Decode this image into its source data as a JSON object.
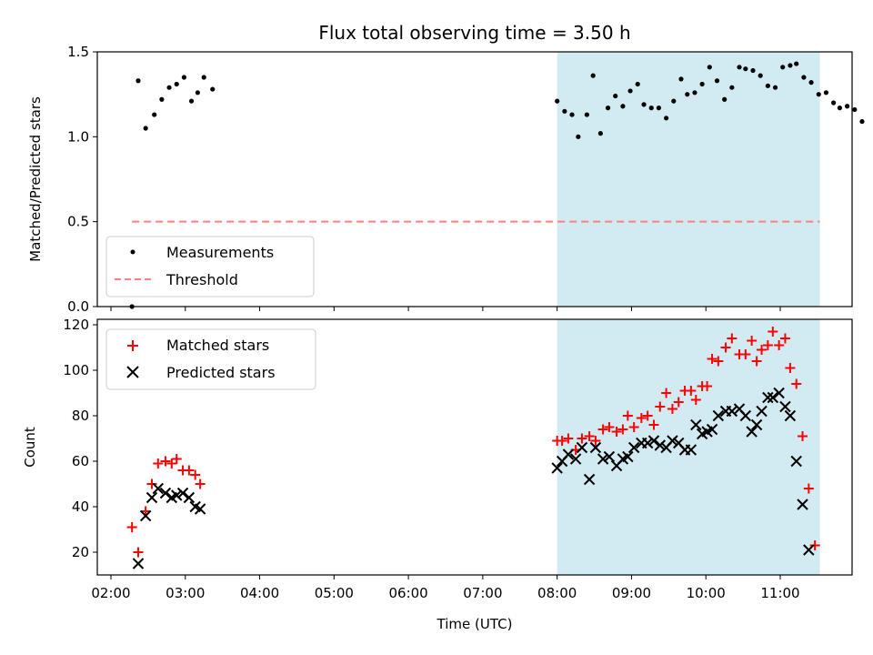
{
  "figure": {
    "title": "Flux total observing time = 3.50 h"
  },
  "colors": {
    "measurement": "#000000",
    "threshold": "#ff7f7f",
    "matched": "#ff0000",
    "predicted": "#000000",
    "shade": "#add8e6"
  },
  "chart_data": [
    {
      "type": "scatter",
      "ylabel": "Matched/Predicted stars",
      "xlabel": "",
      "ylim": [
        0,
        1.5
      ],
      "yticks": [
        "0.0",
        "0.5",
        "1.0",
        "1.5"
      ],
      "xlim_hours": [
        1.75,
        11.95
      ],
      "shaded_range": [
        "08:00",
        "11:32"
      ],
      "legend": {
        "placement": "lower-left",
        "items": [
          "Measurements",
          "Threshold"
        ]
      },
      "threshold": {
        "name": "Threshold",
        "y": 0.5,
        "x_range": [
          "02:17",
          "11:32"
        ]
      },
      "series": [
        {
          "name": "Measurements",
          "marker": "dot",
          "points": [
            [
              "02:17",
              0.0
            ],
            [
              "02:22",
              1.33
            ],
            [
              "02:28",
              1.05
            ],
            [
              "02:35",
              1.13
            ],
            [
              "02:41",
              1.22
            ],
            [
              "02:47",
              1.29
            ],
            [
              "02:53",
              1.31
            ],
            [
              "02:59",
              1.35
            ],
            [
              "03:05",
              1.21
            ],
            [
              "03:10",
              1.26
            ],
            [
              "03:15",
              1.35
            ],
            [
              "03:22",
              1.28
            ],
            [
              "08:00",
              1.21
            ],
            [
              "08:06",
              1.15
            ],
            [
              "08:12",
              1.13
            ],
            [
              "08:17",
              1.0
            ],
            [
              "08:24",
              1.13
            ],
            [
              "08:29",
              1.36
            ],
            [
              "08:35",
              1.02
            ],
            [
              "08:41",
              1.17
            ],
            [
              "08:47",
              1.24
            ],
            [
              "08:53",
              1.18
            ],
            [
              "08:59",
              1.27
            ],
            [
              "09:05",
              1.31
            ],
            [
              "09:10",
              1.19
            ],
            [
              "09:16",
              1.17
            ],
            [
              "09:22",
              1.17
            ],
            [
              "09:28",
              1.11
            ],
            [
              "09:34",
              1.21
            ],
            [
              "09:40",
              1.34
            ],
            [
              "09:45",
              1.25
            ],
            [
              "09:51",
              1.26
            ],
            [
              "09:57",
              1.31
            ],
            [
              "10:03",
              1.41
            ],
            [
              "10:09",
              1.33
            ],
            [
              "10:15",
              1.22
            ],
            [
              "10:21",
              1.29
            ],
            [
              "10:27",
              1.41
            ],
            [
              "10:32",
              1.4
            ],
            [
              "10:38",
              1.39
            ],
            [
              "10:44",
              1.36
            ],
            [
              "10:50",
              1.3
            ],
            [
              "10:56",
              1.29
            ],
            [
              "11:02",
              1.41
            ],
            [
              "11:08",
              1.42
            ],
            [
              "11:13",
              1.43
            ],
            [
              "11:19",
              1.35
            ],
            [
              "11:25",
              1.32
            ],
            [
              "11:31",
              1.25
            ],
            [
              "11:37",
              1.26
            ],
            [
              "11:43",
              1.2
            ],
            [
              "11:48",
              1.17
            ],
            [
              "11:54",
              1.18
            ],
            [
              "12:00",
              1.16
            ],
            [
              "12:06",
              1.09
            ]
          ]
        }
      ]
    },
    {
      "type": "scatter",
      "ylabel": "Count",
      "xlabel": "Time (UTC)",
      "ylim": [
        10,
        122
      ],
      "yticks": [
        "20",
        "40",
        "60",
        "80",
        "100",
        "120"
      ],
      "xticks": [
        "02:00",
        "03:00",
        "04:00",
        "05:00",
        "06:00",
        "07:00",
        "08:00",
        "09:00",
        "10:00",
        "11:00"
      ],
      "shaded_range": [
        "08:00",
        "11:32"
      ],
      "legend": {
        "placement": "top-left",
        "items": [
          "Matched stars",
          "Predicted stars"
        ]
      },
      "series": [
        {
          "name": "Matched stars",
          "marker": "plus",
          "points": [
            [
              "02:17",
              31
            ],
            [
              "02:22",
              20
            ],
            [
              "02:28",
              38
            ],
            [
              "02:33",
              50
            ],
            [
              "02:38",
              59
            ],
            [
              "02:44",
              60
            ],
            [
              "02:49",
              59
            ],
            [
              "02:53",
              61
            ],
            [
              "02:58",
              56
            ],
            [
              "03:03",
              56
            ],
            [
              "03:08",
              54
            ],
            [
              "03:12",
              50
            ],
            [
              "08:00",
              69
            ],
            [
              "08:04",
              69
            ],
            [
              "08:09",
              70
            ],
            [
              "08:15",
              65
            ],
            [
              "08:20",
              70
            ],
            [
              "08:26",
              71
            ],
            [
              "08:31",
              69
            ],
            [
              "08:37",
              74
            ],
            [
              "08:42",
              75
            ],
            [
              "08:48",
              73
            ],
            [
              "08:53",
              74
            ],
            [
              "08:57",
              80
            ],
            [
              "09:02",
              75
            ],
            [
              "09:08",
              79
            ],
            [
              "09:13",
              80
            ],
            [
              "09:18",
              76
            ],
            [
              "09:23",
              84
            ],
            [
              "09:28",
              90
            ],
            [
              "09:33",
              83
            ],
            [
              "09:38",
              86
            ],
            [
              "09:43",
              91
            ],
            [
              "09:48",
              91
            ],
            [
              "09:52",
              87
            ],
            [
              "09:57",
              93
            ],
            [
              "10:01",
              93
            ],
            [
              "10:05",
              105
            ],
            [
              "10:10",
              104
            ],
            [
              "10:16",
              110
            ],
            [
              "10:21",
              114
            ],
            [
              "10:27",
              107
            ],
            [
              "10:32",
              107
            ],
            [
              "10:37",
              113
            ],
            [
              "10:41",
              104
            ],
            [
              "10:45",
              109
            ],
            [
              "10:50",
              111
            ],
            [
              "10:54",
              117
            ],
            [
              "10:59",
              111
            ],
            [
              "11:04",
              114
            ],
            [
              "11:08",
              101
            ],
            [
              "11:13",
              94
            ],
            [
              "11:18",
              71
            ],
            [
              "11:23",
              48
            ],
            [
              "11:28",
              23
            ]
          ]
        },
        {
          "name": "Predicted stars",
          "marker": "x",
          "points": [
            [
              "02:22",
              15
            ],
            [
              "02:28",
              36
            ],
            [
              "02:33",
              44
            ],
            [
              "02:38",
              48
            ],
            [
              "02:44",
              46
            ],
            [
              "02:49",
              44
            ],
            [
              "02:53",
              45
            ],
            [
              "02:58",
              46
            ],
            [
              "03:03",
              44
            ],
            [
              "03:08",
              40
            ],
            [
              "03:12",
              39
            ],
            [
              "08:00",
              57
            ],
            [
              "08:04",
              60
            ],
            [
              "08:09",
              63
            ],
            [
              "08:15",
              61
            ],
            [
              "08:20",
              66
            ],
            [
              "08:26",
              52
            ],
            [
              "08:31",
              66
            ],
            [
              "08:37",
              61
            ],
            [
              "08:42",
              62
            ],
            [
              "08:48",
              58
            ],
            [
              "08:53",
              61
            ],
            [
              "08:57",
              62
            ],
            [
              "09:02",
              66
            ],
            [
              "09:08",
              68
            ],
            [
              "09:13",
              68
            ],
            [
              "09:18",
              69
            ],
            [
              "09:23",
              67
            ],
            [
              "09:28",
              66
            ],
            [
              "09:33",
              69
            ],
            [
              "09:38",
              68
            ],
            [
              "09:43",
              65
            ],
            [
              "09:48",
              65
            ],
            [
              "09:52",
              76
            ],
            [
              "09:57",
              72
            ],
            [
              "10:01",
              73
            ],
            [
              "10:05",
              74
            ],
            [
              "10:10",
              80
            ],
            [
              "10:16",
              82
            ],
            [
              "10:21",
              82
            ],
            [
              "10:27",
              83
            ],
            [
              "10:32",
              80
            ],
            [
              "10:37",
              73
            ],
            [
              "10:41",
              76
            ],
            [
              "10:45",
              82
            ],
            [
              "10:50",
              88
            ],
            [
              "10:54",
              88
            ],
            [
              "10:59",
              90
            ],
            [
              "11:04",
              84
            ],
            [
              "11:08",
              80
            ],
            [
              "11:13",
              60
            ],
            [
              "11:18",
              41
            ],
            [
              "11:23",
              21
            ]
          ]
        }
      ]
    }
  ]
}
